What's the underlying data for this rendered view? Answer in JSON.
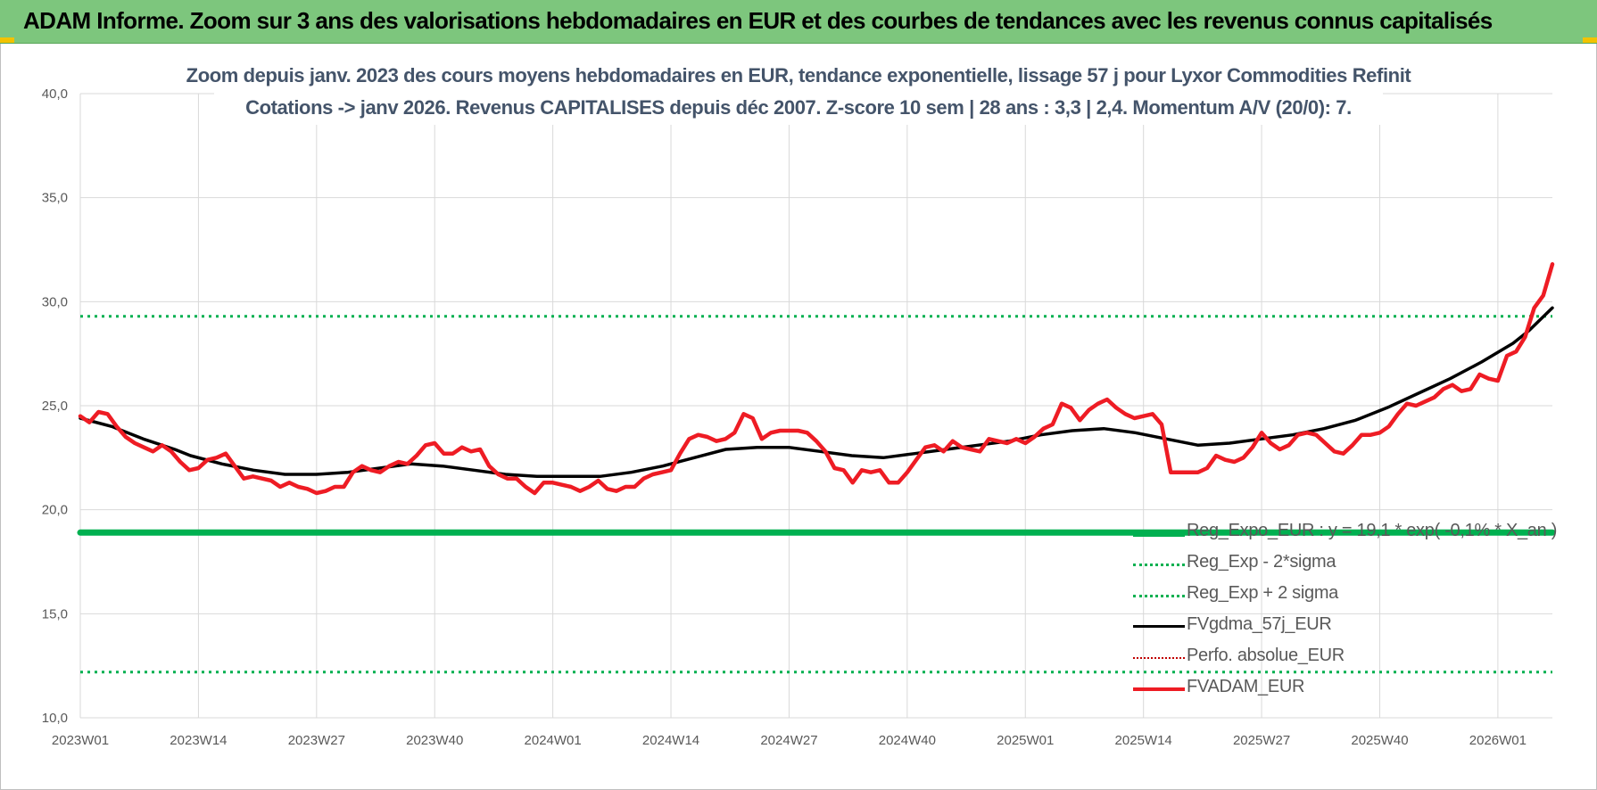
{
  "banner": {
    "title": "ADAM Informe. Zoom sur 3 ans des valorisations hebdomadaires en EUR et des courbes de tendances avec les revenus connus capitalisés"
  },
  "colors": {
    "banner_bg": "#7dc67d",
    "title_text": "#44546a",
    "price_line": "#ee1c24",
    "moving_average": "#000000",
    "regression": "#00b050",
    "sigma_bands": "#00b050",
    "absolute_perf": "#c00000"
  },
  "chart_data": {
    "type": "line",
    "title_line1": "Zoom depuis janv. 2023 des cours moyens hebdomadaires en EUR, tendance exponentielle, lissage 57 j pour Lyxor Commodities Refinit",
    "title_line2": "Cotations -> janv 2026. Revenus CAPITALISES depuis déc 2007. Z-score 10 sem | 28 ans : 3,3 | 2,4. Momentum A/V (20/0): 7.",
    "xlabel": "",
    "ylabel": "",
    "ylim": [
      10,
      40
    ],
    "y_ticks": [
      "10,0",
      "15,0",
      "20,0",
      "25,0",
      "30,0",
      "35,0",
      "40,0"
    ],
    "x_ticks": [
      "2023W01",
      "2023W14",
      "2023W27",
      "2023W40",
      "2024W01",
      "2024W14",
      "2024W27",
      "2024W40",
      "2025W01",
      "2025W14",
      "2025W27",
      "2025W40",
      "2026W01"
    ],
    "x_range_weeks": [
      0,
      162
    ],
    "grid": true,
    "legend_position": "bottom-right",
    "series": [
      {
        "name": "Reg_Expo_EUR : y = 19,1 * exp( -0,1% * X_an )",
        "style": "solid-thick",
        "points": [
          [
            0,
            18.9
          ],
          [
            162,
            18.9
          ]
        ]
      },
      {
        "name": "Reg_Exp - 2*sigma",
        "style": "dotted",
        "points": [
          [
            0,
            12.2
          ],
          [
            162,
            12.2
          ]
        ]
      },
      {
        "name": "Reg_Exp + 2 sigma",
        "style": "dotted",
        "points": [
          [
            0,
            29.3
          ],
          [
            162,
            29.3
          ]
        ]
      },
      {
        "name": "FVgdma_57j_EUR",
        "style": "solid",
        "points": [
          [
            0,
            24.4
          ],
          [
            4,
            24.0
          ],
          [
            8,
            23.4
          ],
          [
            12,
            22.9
          ],
          [
            14,
            22.6
          ],
          [
            18,
            22.2
          ],
          [
            22,
            21.9
          ],
          [
            26,
            21.7
          ],
          [
            30,
            21.7
          ],
          [
            34,
            21.8
          ],
          [
            38,
            22.0
          ],
          [
            42,
            22.2
          ],
          [
            46,
            22.1
          ],
          [
            50,
            21.9
          ],
          [
            54,
            21.7
          ],
          [
            58,
            21.6
          ],
          [
            62,
            21.6
          ],
          [
            66,
            21.6
          ],
          [
            70,
            21.8
          ],
          [
            74,
            22.1
          ],
          [
            78,
            22.5
          ],
          [
            82,
            22.9
          ],
          [
            86,
            23.0
          ],
          [
            90,
            23.0
          ],
          [
            94,
            22.8
          ],
          [
            98,
            22.6
          ],
          [
            102,
            22.5
          ],
          [
            106,
            22.7
          ],
          [
            110,
            22.9
          ],
          [
            114,
            23.1
          ],
          [
            118,
            23.3
          ],
          [
            122,
            23.6
          ],
          [
            126,
            23.8
          ],
          [
            130,
            23.9
          ],
          [
            134,
            23.7
          ],
          [
            138,
            23.4
          ],
          [
            142,
            23.1
          ],
          [
            146,
            23.2
          ],
          [
            150,
            23.4
          ],
          [
            154,
            23.6
          ],
          [
            158,
            23.9
          ],
          [
            162,
            24.3
          ],
          [
            166,
            24.9
          ],
          [
            170,
            25.6
          ],
          [
            174,
            26.3
          ],
          [
            178,
            27.1
          ],
          [
            182,
            28.0
          ],
          [
            184,
            28.6
          ],
          [
            187,
            29.7
          ]
        ]
      },
      {
        "name": "Perfo. absolue_EUR",
        "style": "dotted-red",
        "points": []
      },
      {
        "name": "FVADAM_EUR",
        "style": "solid-thick-red",
        "points": [
          [
            0,
            24.5
          ],
          [
            1,
            24.2
          ],
          [
            2,
            24.7
          ],
          [
            3,
            24.6
          ],
          [
            4,
            24.0
          ],
          [
            5,
            23.5
          ],
          [
            6,
            23.2
          ],
          [
            7,
            23.0
          ],
          [
            8,
            22.8
          ],
          [
            9,
            23.1
          ],
          [
            10,
            22.8
          ],
          [
            11,
            22.3
          ],
          [
            12,
            21.9
          ],
          [
            13,
            22.0
          ],
          [
            14,
            22.4
          ],
          [
            15,
            22.5
          ],
          [
            16,
            22.7
          ],
          [
            17,
            22.1
          ],
          [
            18,
            21.5
          ],
          [
            19,
            21.6
          ],
          [
            20,
            21.5
          ],
          [
            21,
            21.4
          ],
          [
            22,
            21.1
          ],
          [
            23,
            21.3
          ],
          [
            24,
            21.1
          ],
          [
            25,
            21.0
          ],
          [
            26,
            20.8
          ],
          [
            27,
            20.9
          ],
          [
            28,
            21.1
          ],
          [
            29,
            21.1
          ],
          [
            30,
            21.8
          ],
          [
            31,
            22.1
          ],
          [
            32,
            21.9
          ],
          [
            33,
            21.8
          ],
          [
            34,
            22.1
          ],
          [
            35,
            22.3
          ],
          [
            36,
            22.2
          ],
          [
            37,
            22.6
          ],
          [
            38,
            23.1
          ],
          [
            39,
            23.2
          ],
          [
            40,
            22.7
          ],
          [
            41,
            22.7
          ],
          [
            42,
            23.0
          ],
          [
            43,
            22.8
          ],
          [
            44,
            22.9
          ],
          [
            45,
            22.1
          ],
          [
            46,
            21.7
          ],
          [
            47,
            21.5
          ],
          [
            48,
            21.5
          ],
          [
            49,
            21.1
          ],
          [
            50,
            20.8
          ],
          [
            51,
            21.3
          ],
          [
            52,
            21.3
          ],
          [
            53,
            21.2
          ],
          [
            54,
            21.1
          ],
          [
            55,
            20.9
          ],
          [
            56,
            21.1
          ],
          [
            57,
            21.4
          ],
          [
            58,
            21.0
          ],
          [
            59,
            20.9
          ],
          [
            60,
            21.1
          ],
          [
            61,
            21.1
          ],
          [
            62,
            21.5
          ],
          [
            63,
            21.7
          ],
          [
            64,
            21.8
          ],
          [
            65,
            21.9
          ],
          [
            66,
            22.7
          ],
          [
            67,
            23.4
          ],
          [
            68,
            23.6
          ],
          [
            69,
            23.5
          ],
          [
            70,
            23.3
          ],
          [
            71,
            23.4
          ],
          [
            72,
            23.7
          ],
          [
            73,
            24.6
          ],
          [
            74,
            24.4
          ],
          [
            75,
            23.4
          ],
          [
            76,
            23.7
          ],
          [
            77,
            23.8
          ],
          [
            78,
            23.8
          ],
          [
            79,
            23.8
          ],
          [
            80,
            23.7
          ],
          [
            81,
            23.3
          ],
          [
            82,
            22.8
          ],
          [
            83,
            22.0
          ],
          [
            84,
            21.9
          ],
          [
            85,
            21.3
          ],
          [
            86,
            21.9
          ],
          [
            87,
            21.8
          ],
          [
            88,
            21.9
          ],
          [
            89,
            21.3
          ],
          [
            90,
            21.3
          ],
          [
            91,
            21.8
          ],
          [
            92,
            22.4
          ],
          [
            93,
            23.0
          ],
          [
            94,
            23.1
          ],
          [
            95,
            22.8
          ],
          [
            96,
            23.3
          ],
          [
            97,
            23.0
          ],
          [
            98,
            22.9
          ],
          [
            99,
            22.8
          ],
          [
            100,
            23.4
          ],
          [
            101,
            23.3
          ],
          [
            102,
            23.2
          ],
          [
            103,
            23.4
          ],
          [
            104,
            23.2
          ],
          [
            105,
            23.5
          ],
          [
            106,
            23.9
          ],
          [
            107,
            24.1
          ],
          [
            108,
            25.1
          ],
          [
            109,
            24.9
          ],
          [
            110,
            24.3
          ],
          [
            111,
            24.8
          ],
          [
            112,
            25.1
          ],
          [
            113,
            25.3
          ],
          [
            114,
            24.9
          ],
          [
            115,
            24.6
          ],
          [
            116,
            24.4
          ],
          [
            117,
            24.5
          ],
          [
            118,
            24.6
          ],
          [
            119,
            24.1
          ],
          [
            120,
            21.8
          ],
          [
            121,
            21.8
          ],
          [
            122,
            21.8
          ],
          [
            123,
            21.8
          ],
          [
            124,
            22.0
          ],
          [
            125,
            22.6
          ],
          [
            126,
            22.4
          ],
          [
            127,
            22.3
          ],
          [
            128,
            22.5
          ],
          [
            129,
            23.0
          ],
          [
            130,
            23.7
          ],
          [
            131,
            23.2
          ],
          [
            132,
            22.9
          ],
          [
            133,
            23.1
          ],
          [
            134,
            23.6
          ],
          [
            135,
            23.7
          ],
          [
            136,
            23.6
          ],
          [
            137,
            23.2
          ],
          [
            138,
            22.8
          ],
          [
            139,
            22.7
          ],
          [
            140,
            23.1
          ],
          [
            141,
            23.6
          ],
          [
            142,
            23.6
          ],
          [
            143,
            23.7
          ],
          [
            144,
            24.0
          ],
          [
            145,
            24.6
          ],
          [
            146,
            25.1
          ],
          [
            147,
            25.0
          ],
          [
            148,
            25.2
          ],
          [
            149,
            25.4
          ],
          [
            150,
            25.8
          ],
          [
            151,
            26.0
          ],
          [
            152,
            25.7
          ],
          [
            153,
            25.8
          ],
          [
            154,
            26.5
          ],
          [
            155,
            26.3
          ],
          [
            156,
            26.2
          ],
          [
            157,
            27.4
          ],
          [
            158,
            27.6
          ],
          [
            159,
            28.3
          ],
          [
            160,
            29.7
          ],
          [
            161,
            30.3
          ],
          [
            162,
            31.8
          ]
        ]
      }
    ]
  }
}
